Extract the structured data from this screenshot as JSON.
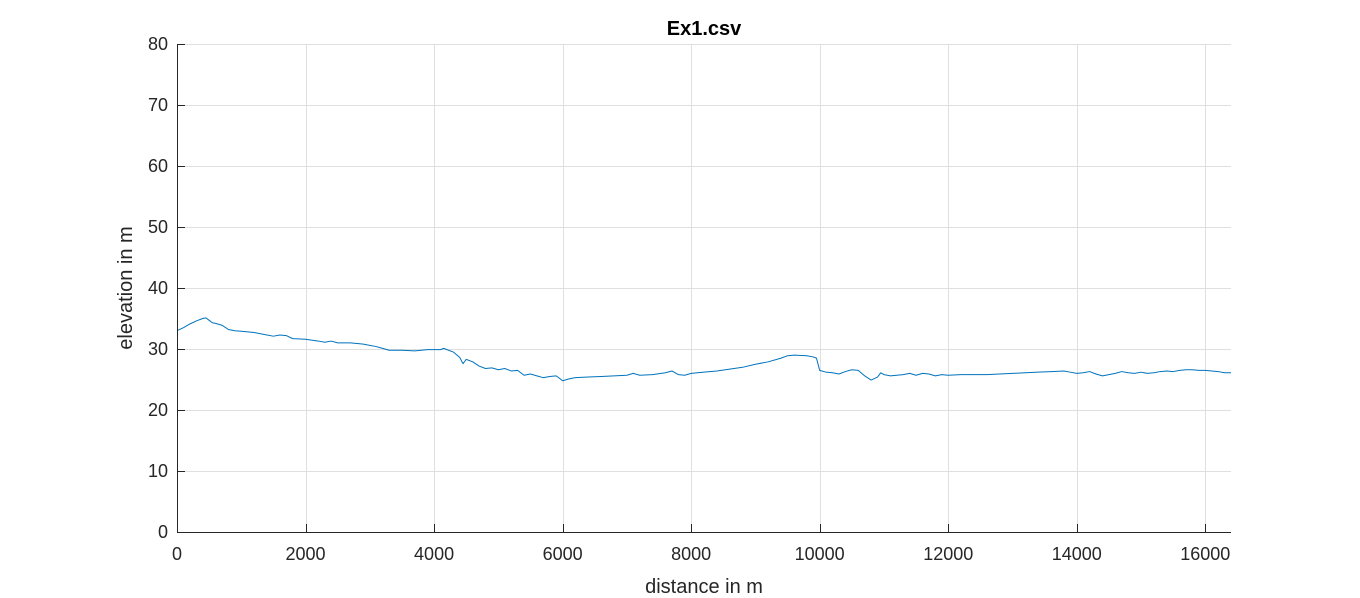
{
  "chart_data": {
    "type": "line",
    "title": "Ex1.csv",
    "xlabel": "distance in m",
    "ylabel": "elevation in m",
    "xlim": [
      0,
      16400
    ],
    "ylim": [
      0,
      80
    ],
    "xticks": [
      0,
      2000,
      4000,
      6000,
      8000,
      10000,
      12000,
      14000,
      16000
    ],
    "yticks": [
      0,
      10,
      20,
      30,
      40,
      50,
      60,
      70,
      80
    ],
    "grid": true,
    "legend": "none",
    "series": [
      {
        "color": "#0072BD",
        "x": [
          0,
          100,
          200,
          300,
          400,
          450,
          500,
          550,
          600,
          700,
          800,
          900,
          1000,
          1200,
          1400,
          1500,
          1600,
          1700,
          1800,
          2000,
          2200,
          2300,
          2400,
          2500,
          2700,
          2900,
          3000,
          3100,
          3200,
          3300,
          3500,
          3700,
          3900,
          4000,
          4100,
          4150,
          4200,
          4300,
          4400,
          4450,
          4500,
          4600,
          4700,
          4800,
          4900,
          5000,
          5100,
          5200,
          5300,
          5400,
          5500,
          5600,
          5700,
          5800,
          5900,
          5950,
          6000,
          6100,
          6200,
          6400,
          6600,
          6800,
          7000,
          7100,
          7200,
          7400,
          7600,
          7700,
          7800,
          7900,
          8000,
          8200,
          8400,
          8600,
          8800,
          9000,
          9200,
          9400,
          9500,
          9600,
          9800,
          9900,
          9950,
          10000,
          10100,
          10200,
          10300,
          10400,
          10500,
          10600,
          10700,
          10800,
          10900,
          10950,
          11000,
          11100,
          11200,
          11300,
          11400,
          11500,
          11600,
          11700,
          11800,
          11900,
          12000,
          12200,
          12400,
          12600,
          12800,
          13000,
          13200,
          13400,
          13600,
          13800,
          13900,
          14000,
          14100,
          14200,
          14300,
          14400,
          14500,
          14600,
          14700,
          14800,
          14900,
          15000,
          15100,
          15200,
          15300,
          15400,
          15500,
          15600,
          15700,
          15800,
          15900,
          16000,
          16100,
          16200,
          16300,
          16400
        ],
        "values": [
          33.0,
          33.5,
          34.1,
          34.6,
          35.0,
          35.1,
          34.7,
          34.3,
          34.2,
          33.9,
          33.2,
          33.0,
          32.9,
          32.7,
          32.3,
          32.1,
          32.3,
          32.2,
          31.7,
          31.6,
          31.3,
          31.1,
          31.3,
          31.0,
          31.0,
          30.8,
          30.6,
          30.4,
          30.1,
          29.8,
          29.8,
          29.7,
          29.9,
          29.9,
          29.9,
          30.1,
          29.9,
          29.5,
          28.6,
          27.6,
          28.3,
          27.9,
          27.2,
          26.8,
          26.9,
          26.6,
          26.8,
          26.4,
          26.5,
          25.7,
          25.9,
          25.6,
          25.3,
          25.5,
          25.6,
          25.2,
          24.8,
          25.1,
          25.3,
          25.4,
          25.5,
          25.6,
          25.7,
          26.0,
          25.7,
          25.8,
          26.1,
          26.4,
          25.8,
          25.7,
          26.0,
          26.2,
          26.4,
          26.7,
          27.0,
          27.5,
          27.9,
          28.5,
          28.9,
          29.0,
          28.9,
          28.7,
          28.5,
          26.5,
          26.2,
          26.1,
          25.9,
          26.3,
          26.6,
          26.5,
          25.6,
          24.9,
          25.4,
          26.1,
          25.8,
          25.6,
          25.7,
          25.8,
          26.0,
          25.7,
          26.0,
          25.9,
          25.6,
          25.8,
          25.7,
          25.8,
          25.8,
          25.8,
          25.9,
          26.0,
          26.1,
          26.2,
          26.3,
          26.4,
          26.2,
          26.0,
          26.1,
          26.3,
          25.9,
          25.6,
          25.8,
          26.0,
          26.3,
          26.1,
          26.0,
          26.2,
          26.0,
          26.1,
          26.3,
          26.4,
          26.3,
          26.5,
          26.6,
          26.6,
          26.5,
          26.5,
          26.4,
          26.3,
          26.1,
          26.1
        ]
      }
    ]
  }
}
